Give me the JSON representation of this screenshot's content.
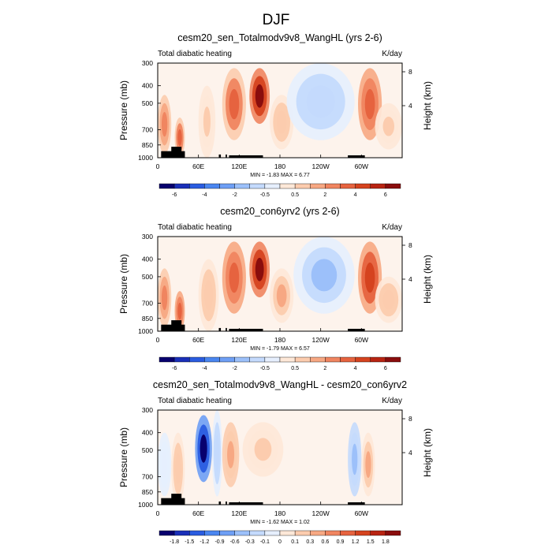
{
  "figure_title": "DJF",
  "chart_data": [
    {
      "type": "heatmap",
      "title": "cesm20_sen_Totalmodv9v8_WangHL (yrs 2-6)",
      "left_label": "Total diabatic heating",
      "right_label": "K/day",
      "ylabel": "Pressure (mb)",
      "ylabel_right": "Height (km)",
      "yticks": [
        "300",
        "400",
        "500",
        "700",
        "850",
        "1000"
      ],
      "yticks_right": [
        "8",
        "4"
      ],
      "xticks": [
        "0",
        "60E",
        "120E",
        "180",
        "120W",
        "60W"
      ],
      "stats": "MIN = -1.83   MAX =   6.77",
      "colorbar_labels": [
        "-6",
        "-4",
        "-2",
        "-0.5",
        "0.5",
        "2",
        "4",
        "6"
      ],
      "colorbar_colors": [
        "#08006e",
        "#1a2fb8",
        "#2a5ce0",
        "#4a86f0",
        "#6e9ff5",
        "#9cc0fa",
        "#c4dafd",
        "#e6effe",
        "#fee8d8",
        "#fcccae",
        "#f7a883",
        "#f08560",
        "#e6633f",
        "#d5431f",
        "#b82412",
        "#8a0d0d"
      ],
      "features": [
        {
          "lon0": 0,
          "lon1": 20,
          "p0": 450,
          "p1": 950,
          "value": 2.5
        },
        {
          "lon0": 25,
          "lon1": 40,
          "p0": 600,
          "p1": 1000,
          "value": 3.5
        },
        {
          "lon0": 60,
          "lon1": 85,
          "p0": 400,
          "p1": 1000,
          "value": 1.0
        },
        {
          "lon0": 95,
          "lon1": 130,
          "p0": 320,
          "p1": 800,
          "value": 3.5
        },
        {
          "lon0": 135,
          "lon1": 165,
          "p0": 320,
          "p1": 650,
          "value": 6.0
        },
        {
          "lon0": 165,
          "lon1": 200,
          "p0": 450,
          "p1": 900,
          "value": 1.5
        },
        {
          "lon0": 190,
          "lon1": 290,
          "p0": 300,
          "p1": 800,
          "value": -1.5
        },
        {
          "lon0": 295,
          "lon1": 330,
          "p0": 320,
          "p1": 800,
          "value": 4.0
        },
        {
          "lon0": 320,
          "lon1": 360,
          "p0": 500,
          "p1": 900,
          "value": 1.0
        }
      ],
      "terrain": [
        {
          "lon0": 5,
          "lon1": 40,
          "p": 920
        },
        {
          "lon0": 20,
          "lon1": 35,
          "p": 870
        },
        {
          "lon0": 90,
          "lon1": 93,
          "p": 960
        },
        {
          "lon0": 100,
          "lon1": 102,
          "p": 960
        },
        {
          "lon0": 105,
          "lon1": 155,
          "p": 970
        },
        {
          "lon0": 280,
          "lon1": 305,
          "p": 970
        }
      ]
    },
    {
      "type": "heatmap",
      "title": "cesm20_con6yrv2 (yrs 2-6)",
      "left_label": "Total diabatic heating",
      "right_label": "K/day",
      "ylabel": "Pressure (mb)",
      "ylabel_right": "Height (km)",
      "yticks": [
        "300",
        "400",
        "500",
        "700",
        "850",
        "1000"
      ],
      "yticks_right": [
        "8",
        "4"
      ],
      "xticks": [
        "0",
        "60E",
        "120E",
        "180",
        "120W",
        "60W"
      ],
      "stats": "MIN = -1.79   MAX =   6.57",
      "colorbar_labels": [
        "-6",
        "-4",
        "-2",
        "-0.5",
        "0.5",
        "2",
        "4",
        "6"
      ],
      "colorbar_colors": [
        "#08006e",
        "#1a2fb8",
        "#2a5ce0",
        "#4a86f0",
        "#6e9ff5",
        "#9cc0fa",
        "#c4dafd",
        "#e6effe",
        "#fee8d8",
        "#fcccae",
        "#f7a883",
        "#f08560",
        "#e6633f",
        "#d5431f",
        "#b82412",
        "#8a0d0d"
      ],
      "features": [
        {
          "lon0": 0,
          "lon1": 20,
          "p0": 450,
          "p1": 950,
          "value": 2.5
        },
        {
          "lon0": 25,
          "lon1": 40,
          "p0": 600,
          "p1": 1000,
          "value": 3.5
        },
        {
          "lon0": 60,
          "lon1": 90,
          "p0": 400,
          "p1": 1000,
          "value": 1.2
        },
        {
          "lon0": 95,
          "lon1": 130,
          "p0": 320,
          "p1": 800,
          "value": 3.5
        },
        {
          "lon0": 135,
          "lon1": 165,
          "p0": 320,
          "p1": 650,
          "value": 5.5
        },
        {
          "lon0": 165,
          "lon1": 200,
          "p0": 450,
          "p1": 900,
          "value": 1.5
        },
        {
          "lon0": 200,
          "lon1": 290,
          "p0": 300,
          "p1": 800,
          "value": -1.5
        },
        {
          "lon0": 295,
          "lon1": 330,
          "p0": 320,
          "p1": 800,
          "value": 4.0
        },
        {
          "lon0": 320,
          "lon1": 360,
          "p0": 500,
          "p1": 900,
          "value": 1.0
        }
      ],
      "terrain": [
        {
          "lon0": 5,
          "lon1": 40,
          "p": 920
        },
        {
          "lon0": 20,
          "lon1": 35,
          "p": 870
        },
        {
          "lon0": 90,
          "lon1": 93,
          "p": 960
        },
        {
          "lon0": 100,
          "lon1": 102,
          "p": 960
        },
        {
          "lon0": 105,
          "lon1": 155,
          "p": 970
        },
        {
          "lon0": 280,
          "lon1": 305,
          "p": 970
        }
      ]
    },
    {
      "type": "heatmap",
      "title": "cesm20_sen_Totalmodv9v8_WangHL - cesm20_con6yrv2",
      "left_label": "Total diabatic heating",
      "right_label": "K/day",
      "ylabel": "Pressure (mb)",
      "ylabel_right": "Height (km)",
      "yticks": [
        "300",
        "400",
        "500",
        "700",
        "850",
        "1000"
      ],
      "yticks_right": [
        "8",
        "4"
      ],
      "xticks": [
        "0",
        "60E",
        "120E",
        "180",
        "120W",
        "60W"
      ],
      "stats": "MIN = -1.62   MAX =   1.02",
      "colorbar_labels": [
        "-1.8",
        "-1.5",
        "-1.2",
        "-0.9",
        "-0.6",
        "-0.3",
        "-0.1",
        "0",
        "0.1",
        "0.3",
        "0.6",
        "0.9",
        "1.2",
        "1.5",
        "1.8"
      ],
      "colorbar_colors": [
        "#08006e",
        "#1a2fb8",
        "#2a5ce0",
        "#4a86f0",
        "#6e9ff5",
        "#9cc0fa",
        "#c4dafd",
        "#e6effe",
        "#fee8d8",
        "#fcccae",
        "#f7a883",
        "#f08560",
        "#e6633f",
        "#d5431f",
        "#b82412",
        "#8a0d0d"
      ],
      "features": [
        {
          "lon0": 0,
          "lon1": 20,
          "p0": 400,
          "p1": 900,
          "value": -0.2
        },
        {
          "lon0": 20,
          "lon1": 40,
          "p0": 400,
          "p1": 1000,
          "value": 0.3
        },
        {
          "lon0": 55,
          "lon1": 80,
          "p0": 320,
          "p1": 750,
          "value": -1.5
        },
        {
          "lon0": 80,
          "lon1": 95,
          "p0": 300,
          "p1": 900,
          "value": -0.4
        },
        {
          "lon0": 95,
          "lon1": 120,
          "p0": 350,
          "p1": 800,
          "value": 0.5
        },
        {
          "lon0": 125,
          "lon1": 185,
          "p0": 350,
          "p1": 700,
          "value": 0.2
        },
        {
          "lon0": 280,
          "lon1": 300,
          "p0": 350,
          "p1": 900,
          "value": -0.5
        },
        {
          "lon0": 300,
          "lon1": 320,
          "p0": 400,
          "p1": 900,
          "value": 0.4
        }
      ],
      "terrain": [
        {
          "lon0": 5,
          "lon1": 40,
          "p": 920
        },
        {
          "lon0": 20,
          "lon1": 35,
          "p": 870
        },
        {
          "lon0": 90,
          "lon1": 93,
          "p": 960
        },
        {
          "lon0": 100,
          "lon1": 102,
          "p": 960
        },
        {
          "lon0": 105,
          "lon1": 155,
          "p": 970
        },
        {
          "lon0": 280,
          "lon1": 305,
          "p": 970
        }
      ]
    }
  ]
}
